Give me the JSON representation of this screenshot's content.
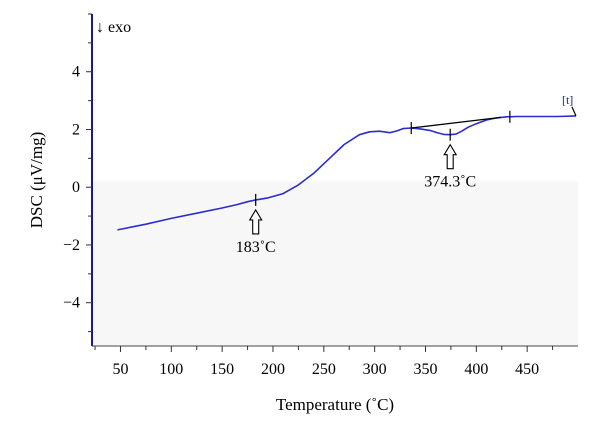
{
  "chart_data": {
    "type": "line",
    "xlabel": "Temperature (˚C)",
    "ylabel": "DSC (μV/mg)",
    "exo_label": "↓ exo",
    "series_tag": "[t]",
    "xlim": [
      22,
      500
    ],
    "ylim": [
      -5.5,
      6
    ],
    "x_ticks": [
      50,
      100,
      150,
      200,
      250,
      300,
      350,
      400,
      450
    ],
    "y_ticks": [
      4,
      2,
      0,
      -2,
      -4
    ],
    "y_tick_labels": [
      "4",
      "2",
      "0",
      "−2",
      "−4"
    ],
    "x_minor_step": 25,
    "y_minor_step": 1,
    "grid": false,
    "colors": {
      "line": "#2b2bd0",
      "axis": "#1a1a8c",
      "baseline": "#000000",
      "plot_bg": "#f7f7f7"
    },
    "series": [
      {
        "x": [
          47,
          75,
          100,
          125,
          150,
          165,
          175,
          183,
          195,
          210,
          225,
          240,
          255,
          270,
          285,
          295,
          305,
          315,
          322,
          328,
          336,
          345,
          355,
          362,
          368,
          374.3,
          380,
          386,
          392,
          400,
          410,
          420,
          430,
          440,
          460,
          480,
          498
        ],
        "y": [
          -1.48,
          -1.28,
          -1.08,
          -0.9,
          -0.72,
          -0.6,
          -0.5,
          -0.44,
          -0.37,
          -0.22,
          0.08,
          0.48,
          0.98,
          1.48,
          1.82,
          1.92,
          1.94,
          1.89,
          1.95,
          2.03,
          2.05,
          2.02,
          1.96,
          1.88,
          1.83,
          1.82,
          1.84,
          1.95,
          2.08,
          2.2,
          2.33,
          2.4,
          2.44,
          2.45,
          2.45,
          2.45,
          2.47
        ]
      }
    ],
    "baseline": {
      "x": [
        336,
        424
      ],
      "y": [
        2.05,
        2.42
      ]
    },
    "markers": [
      {
        "x": 183,
        "y": -0.44
      },
      {
        "x": 336,
        "y": 2.05
      },
      {
        "x": 374.3,
        "y": 1.82
      },
      {
        "x": 433,
        "y": 2.44
      }
    ],
    "annotations": [
      {
        "text": "183˚C",
        "x": 183,
        "y": -0.44
      },
      {
        "text": "374.3˚C",
        "x": 374.3,
        "y": 1.82
      }
    ]
  }
}
